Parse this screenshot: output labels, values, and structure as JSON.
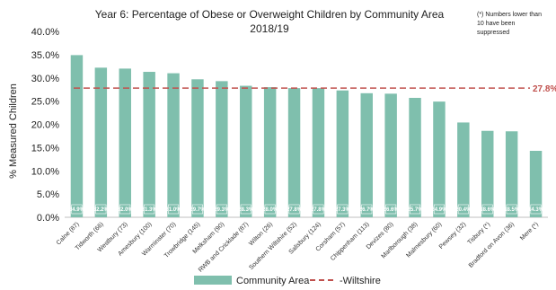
{
  "chart_data": {
    "type": "bar",
    "title": "Year 6: Percentage of Obese or Overweight Children by Community Area",
    "subtitle": "2018/19",
    "note_lines": [
      "(*) Numbers lower than",
      "10 have been",
      "suppressed"
    ],
    "ylabel": "% Measured Children",
    "xlabel": "",
    "ylim": [
      0,
      40
    ],
    "yticks": [
      "0.0%",
      "5.0%",
      "10.0%",
      "15.0%",
      "20.0%",
      "25.0%",
      "30.0%",
      "35.0%",
      "40.0%"
    ],
    "grid": false,
    "legend_position": "bottom",
    "categories": [
      "Calne (87)",
      "Tidworth (66)",
      "Westbury (73)",
      "Amesbury (100)",
      "Warminster (70)",
      "Trowbridge (145)",
      "Melksham (90)",
      "RWB and Cricklade (87)",
      "Wilton (26)",
      "Southern Wiltshire (52)",
      "Salisbury (124)",
      "Corsham (57)",
      "Chippenham (113)",
      "Devizes (80)",
      "Marlborough (38)",
      "Malmesbury (60)",
      "Pewsey (32)",
      "Tisbury (*)",
      "Bradford on Avon (36)",
      "Mere (*)"
    ],
    "series": [
      {
        "name": "Community Area",
        "color": "#7fbfad",
        "values": [
          34.9,
          32.2,
          32.0,
          31.3,
          31.0,
          29.7,
          29.3,
          28.3,
          28.0,
          27.8,
          27.8,
          27.3,
          26.7,
          26.6,
          25.7,
          24.9,
          20.4,
          18.6,
          18.5,
          14.3
        ],
        "labels": [
          "34.9%",
          "32.2%",
          "32.0%",
          "31.3%",
          "31.0%",
          "29.7%",
          "29.3%",
          "28.3%",
          "28.0%",
          "27.8%",
          "27.8%",
          "27.3%",
          "26.7%",
          "26.6%",
          "25.7%",
          "24.9%",
          "20.4%",
          "18.6%",
          "18.5%",
          "14.3%"
        ]
      }
    ],
    "reference_line": {
      "name": "-Wiltshire",
      "value": 27.8,
      "label": "27.8%",
      "color": "#c0504d"
    }
  }
}
